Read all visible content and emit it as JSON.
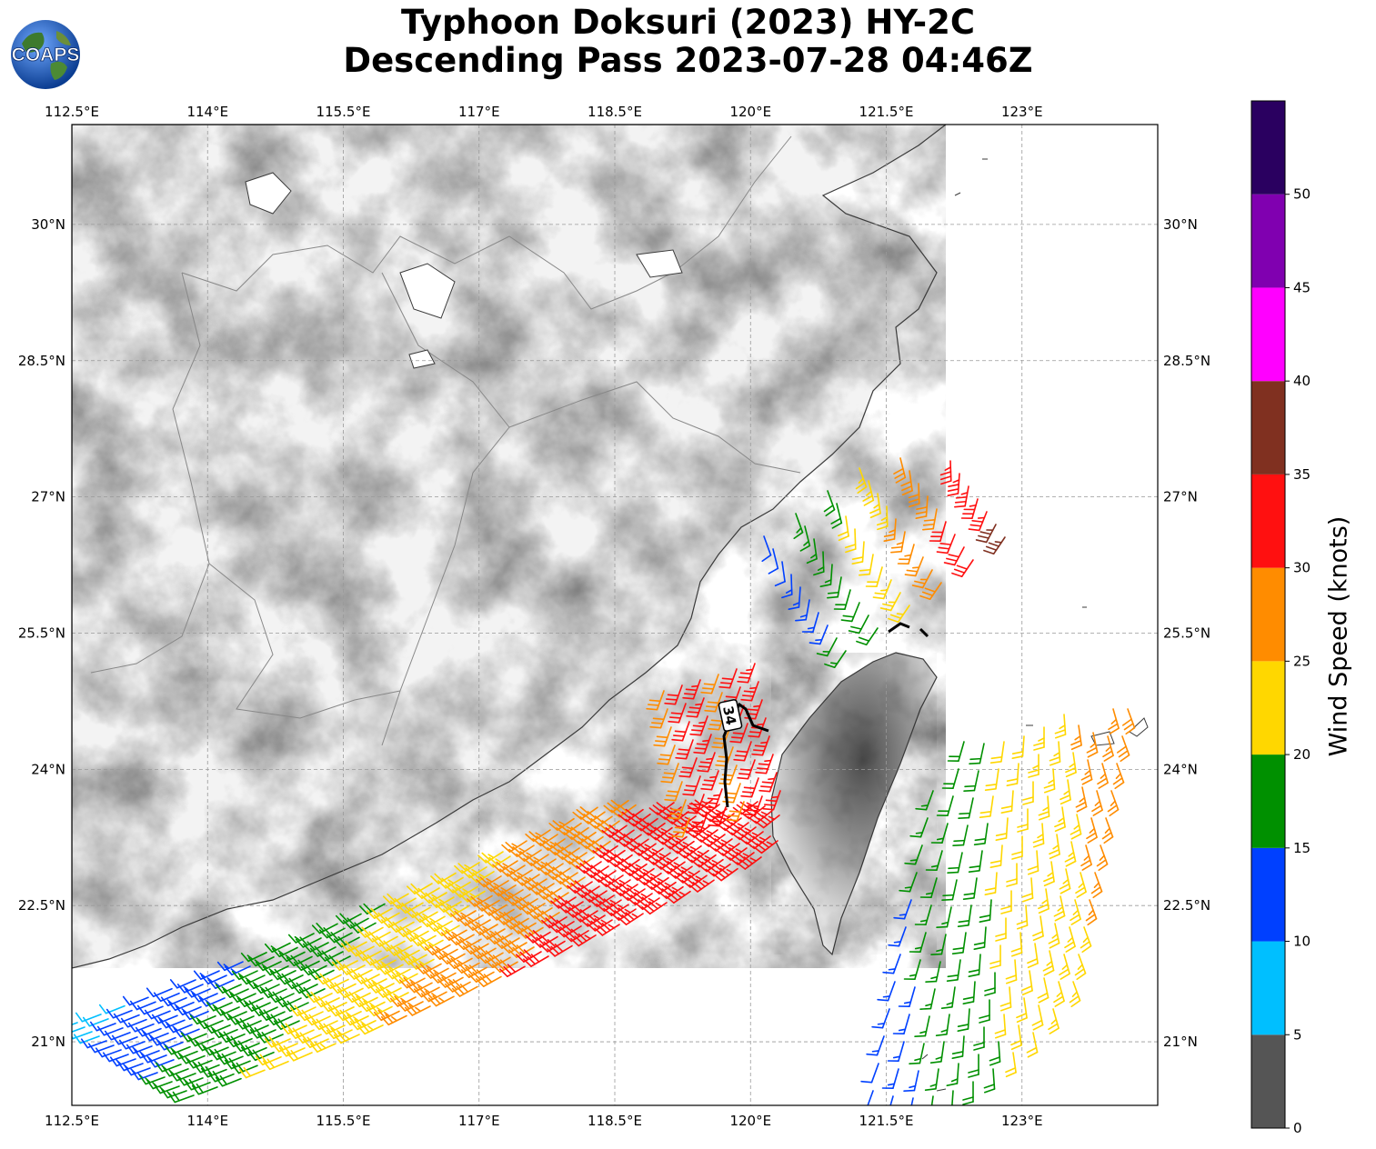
{
  "title": {
    "line1": "Typhoon Doksuri (2023) HY-2C",
    "line2": "Descending Pass 2023-07-28 04:46Z"
  },
  "logo": {
    "text": "COAPS",
    "icon": "globe-icon"
  },
  "map": {
    "projection": "PlateCarree",
    "extent": {
      "lon": [
        112.5,
        124.5
      ],
      "lat": [
        20.3,
        31.1
      ]
    },
    "lon_ticks": [
      "112.5°E",
      "114°E",
      "115.5°E",
      "117°E",
      "118.5°E",
      "120°E",
      "121.5°E",
      "123°E"
    ],
    "lat_ticks": [
      "30°N",
      "28.5°N",
      "27°N",
      "25.5°N",
      "24°N",
      "22.5°N",
      "21°N"
    ],
    "gridlines": true,
    "background": "grayscale terrain relief",
    "storm_marker_label": "34"
  },
  "colorbar": {
    "label": "Wind Speed (knots)",
    "ticks": [
      "0",
      "5",
      "10",
      "15",
      "20",
      "25",
      "30",
      "35",
      "40",
      "45",
      "50"
    ],
    "bins": [
      {
        "range": [
          0,
          5
        ],
        "color": "#555555"
      },
      {
        "range": [
          5,
          10
        ],
        "color": "#00bfff"
      },
      {
        "range": [
          10,
          15
        ],
        "color": "#0040ff"
      },
      {
        "range": [
          15,
          20
        ],
        "color": "#009000"
      },
      {
        "range": [
          20,
          25
        ],
        "color": "#ffd700"
      },
      {
        "range": [
          25,
          30
        ],
        "color": "#ff8c00"
      },
      {
        "range": [
          30,
          35
        ],
        "color": "#ff1010"
      },
      {
        "range": [
          35,
          40
        ],
        "color": "#803020"
      },
      {
        "range": [
          40,
          45
        ],
        "color": "#ff00ff"
      },
      {
        "range": [
          45,
          50
        ],
        "color": "#8000b0"
      },
      {
        "range": [
          50,
          55
        ],
        "color": "#2a0060"
      }
    ]
  }
}
